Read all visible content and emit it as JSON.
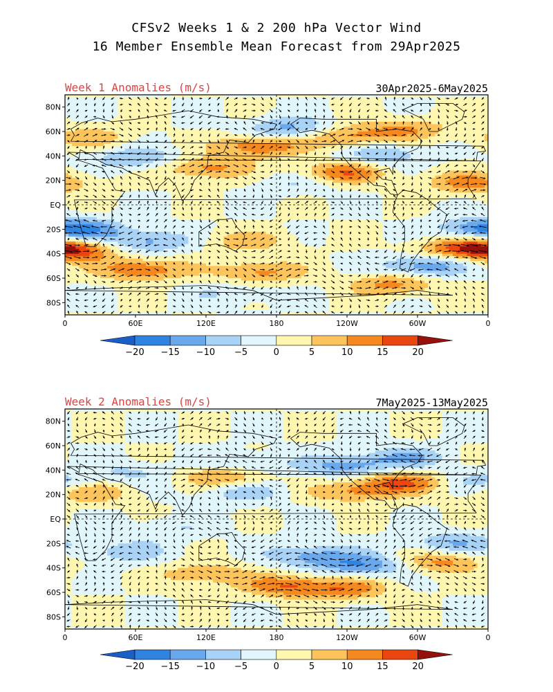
{
  "title_line1": "CFSv2 Weeks 1 & 2 200 hPa Vector Wind",
  "title_line2": "16 Member Ensemble Mean Forecast from 29Apr2025",
  "colorbar": {
    "ticks": [
      "-20",
      "-15",
      "-10",
      "-5",
      "0",
      "5",
      "10",
      "15",
      "20"
    ],
    "colors": [
      "#1a5fc8",
      "#2f84e2",
      "#6aa8ee",
      "#a8d2f6",
      "#e0f6fb",
      "#fff6b0",
      "#fcc45a",
      "#f5881e",
      "#e94610",
      "#c6190e",
      "#96100c"
    ]
  },
  "chart_data": [
    {
      "type": "heatmap",
      "title": "Week 1 Anomalies (m/s)",
      "date_range": "30Apr2025-6May2025",
      "variable": "200 hPa vector wind anomaly",
      "units": "m/s",
      "x_tick_labels": [
        "0",
        "60E",
        "120E",
        "180",
        "120W",
        "60W",
        "0"
      ],
      "y_tick_labels": [
        "80N",
        "60N",
        "40N",
        "20N",
        "EQ",
        "20S",
        "40S",
        "60S",
        "80S"
      ],
      "xlim": [
        0,
        360
      ],
      "ylim": [
        -90,
        90
      ],
      "levels": [
        -20,
        -15,
        -10,
        -5,
        0,
        5,
        10,
        15,
        20
      ],
      "anomaly_features": [
        {
          "lon": 165,
          "lat": 48,
          "value": 15
        },
        {
          "lon": 240,
          "lat": 55,
          "value": 12
        },
        {
          "lon": 290,
          "lat": 62,
          "value": 10
        },
        {
          "lon": 235,
          "lat": 26,
          "value": 15
        },
        {
          "lon": 120,
          "lat": 30,
          "value": 12
        },
        {
          "lon": 345,
          "lat": 18,
          "value": 12
        },
        {
          "lon": 20,
          "lat": 55,
          "value": 8
        },
        {
          "lon": 190,
          "lat": 62,
          "value": -12
        },
        {
          "lon": 60,
          "lat": 38,
          "value": -10
        },
        {
          "lon": 270,
          "lat": 42,
          "value": -10
        },
        {
          "lon": 200,
          "lat": 18,
          "value": -6
        },
        {
          "lon": 15,
          "lat": -20,
          "value": -12
        },
        {
          "lon": 5,
          "lat": -37,
          "value": 18
        },
        {
          "lon": 70,
          "lat": -30,
          "value": -12
        },
        {
          "lon": 155,
          "lat": -30,
          "value": 8
        },
        {
          "lon": 65,
          "lat": -53,
          "value": 15
        },
        {
          "lon": 165,
          "lat": -55,
          "value": 12
        },
        {
          "lon": 305,
          "lat": -50,
          "value": -14
        },
        {
          "lon": 335,
          "lat": -35,
          "value": 12
        },
        {
          "lon": 350,
          "lat": -20,
          "value": -10
        },
        {
          "lon": 280,
          "lat": -65,
          "value": 12
        },
        {
          "lon": 140,
          "lat": -72,
          "value": -5
        }
      ]
    },
    {
      "type": "heatmap",
      "title": "Week 2 Anomalies (m/s)",
      "date_range": "7May2025-13May2025",
      "variable": "200 hPa vector wind anomaly",
      "units": "m/s",
      "x_tick_labels": [
        "0",
        "60E",
        "120E",
        "180",
        "120W",
        "60W",
        "0"
      ],
      "y_tick_labels": [
        "80N",
        "60N",
        "40N",
        "20N",
        "EQ",
        "20S",
        "40S",
        "60S",
        "80S"
      ],
      "xlim": [
        0,
        360
      ],
      "ylim": [
        -90,
        90
      ],
      "levels": [
        -20,
        -15,
        -10,
        -5,
        0,
        5,
        10,
        15,
        20
      ],
      "anomaly_features": [
        {
          "lon": 135,
          "lat": 35,
          "value": 12
        },
        {
          "lon": 285,
          "lat": 30,
          "value": 15
        },
        {
          "lon": 245,
          "lat": 22,
          "value": 10
        },
        {
          "lon": 20,
          "lat": 22,
          "value": 10
        },
        {
          "lon": 240,
          "lat": 43,
          "value": -12
        },
        {
          "lon": 290,
          "lat": 50,
          "value": -10
        },
        {
          "lon": 155,
          "lat": 45,
          "value": -8
        },
        {
          "lon": 150,
          "lat": 22,
          "value": -8
        },
        {
          "lon": 60,
          "lat": 38,
          "value": -6
        },
        {
          "lon": 355,
          "lat": 30,
          "value": -8
        },
        {
          "lon": 50,
          "lat": -27,
          "value": -8
        },
        {
          "lon": 210,
          "lat": -30,
          "value": -12
        },
        {
          "lon": 255,
          "lat": -38,
          "value": -14
        },
        {
          "lon": 320,
          "lat": -35,
          "value": 12
        },
        {
          "lon": 120,
          "lat": -45,
          "value": 10
        },
        {
          "lon": 190,
          "lat": -55,
          "value": 14
        },
        {
          "lon": 240,
          "lat": -57,
          "value": 12
        },
        {
          "lon": 330,
          "lat": -20,
          "value": -10
        },
        {
          "lon": 90,
          "lat": -8,
          "value": -5
        }
      ]
    }
  ]
}
